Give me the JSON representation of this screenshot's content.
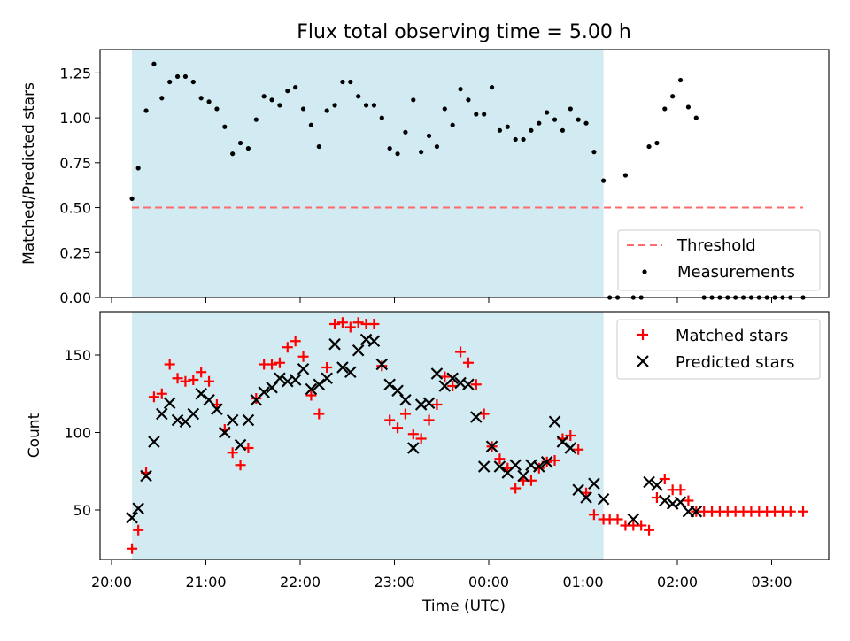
{
  "title": "Flux total observing time = 5.00 h",
  "colors": {
    "span": "#add8e6",
    "threshold": "#ff6b6b",
    "matched": "#ff0000",
    "predicted": "#000000",
    "measurement": "#000000"
  },
  "chart_data": [
    {
      "type": "scatter",
      "ylabel": "Matched/Predicted stars",
      "xlabel": "",
      "ylim": [
        0,
        1.38
      ],
      "x_unit": "hours since 20:00 UTC",
      "shaded_span": [
        "20:13",
        "01:13"
      ],
      "threshold": {
        "name": "Threshold",
        "value": 0.5,
        "x_range": [
          "20:13",
          "03:20"
        ]
      },
      "legend": {
        "position": "lower-right",
        "entries": [
          "Threshold",
          "Measurements"
        ]
      },
      "xticks": [
        "20:00",
        "21:00",
        "22:00",
        "23:00",
        "00:00",
        "01:00",
        "02:00",
        "03:00"
      ],
      "yticks": [
        "0.00",
        "0.25",
        "0.50",
        "0.75",
        "1.00",
        "1.25"
      ],
      "series": [
        {
          "name": "Measurements",
          "x": [
            "20:13",
            "20:17",
            "20:22",
            "20:27",
            "20:32",
            "20:37",
            "20:42",
            "20:47",
            "20:52",
            "20:57",
            "21:02",
            "21:07",
            "21:12",
            "21:17",
            "21:22",
            "21:27",
            "21:32",
            "21:37",
            "21:42",
            "21:47",
            "21:52",
            "21:57",
            "22:02",
            "22:07",
            "22:12",
            "22:17",
            "22:22",
            "22:27",
            "22:32",
            "22:37",
            "22:42",
            "22:47",
            "22:52",
            "22:57",
            "23:02",
            "23:07",
            "23:12",
            "23:17",
            "23:22",
            "23:27",
            "23:32",
            "23:37",
            "23:42",
            "23:47",
            "23:52",
            "23:57",
            "00:02",
            "00:07",
            "00:12",
            "00:17",
            "00:22",
            "00:27",
            "00:32",
            "00:37",
            "00:42",
            "00:47",
            "00:52",
            "00:57",
            "01:02",
            "01:07",
            "01:13",
            "01:17",
            "01:22",
            "01:27",
            "01:32",
            "01:37",
            "01:42",
            "01:47",
            "01:52",
            "01:57",
            "02:02",
            "02:07",
            "02:12",
            "02:17",
            "02:22",
            "02:27",
            "02:32",
            "02:37",
            "02:42",
            "02:47",
            "02:52",
            "02:57",
            "03:02",
            "03:07",
            "03:12",
            "03:20"
          ],
          "y": [
            0.55,
            0.72,
            1.04,
            1.3,
            1.11,
            1.2,
            1.23,
            1.23,
            1.2,
            1.11,
            1.09,
            1.05,
            0.95,
            0.8,
            0.86,
            0.83,
            0.99,
            1.12,
            1.1,
            1.07,
            1.15,
            1.17,
            1.05,
            0.96,
            0.84,
            1.04,
            1.07,
            1.2,
            1.2,
            1.12,
            1.07,
            1.07,
            1.0,
            0.83,
            0.8,
            0.92,
            1.1,
            0.81,
            0.9,
            0.84,
            1.05,
            0.96,
            1.16,
            1.1,
            1.02,
            1.02,
            1.17,
            0.93,
            0.95,
            0.88,
            0.88,
            0.93,
            0.97,
            1.03,
            0.99,
            0.93,
            1.05,
            0.99,
            0.97,
            0.81,
            0.65,
            0.0,
            0.0,
            0.68,
            0.0,
            0.0,
            0.84,
            0.86,
            1.05,
            1.12,
            1.21,
            1.06,
            1.0,
            0.0,
            0.0,
            0.0,
            0.0,
            0.0,
            0.0,
            0.0,
            0.0,
            0.0,
            0.0,
            0.0,
            0.0,
            0.0
          ]
        }
      ]
    },
    {
      "type": "scatter",
      "ylabel": "Count",
      "xlabel": "Time (UTC)",
      "ylim": [
        18,
        178
      ],
      "x_unit": "hours since 20:00 UTC",
      "shaded_span": [
        "20:13",
        "01:13"
      ],
      "legend": {
        "position": "top-right",
        "entries": [
          "Matched stars",
          "Predicted stars"
        ]
      },
      "xticks": [
        "20:00",
        "21:00",
        "22:00",
        "23:00",
        "00:00",
        "01:00",
        "02:00",
        "03:00"
      ],
      "yticks": [
        "50",
        "100",
        "150"
      ],
      "series": [
        {
          "name": "Matched stars",
          "x": [
            "20:13",
            "20:17",
            "20:22",
            "20:27",
            "20:32",
            "20:37",
            "20:42",
            "20:47",
            "20:52",
            "20:57",
            "21:02",
            "21:07",
            "21:12",
            "21:17",
            "21:22",
            "21:27",
            "21:32",
            "21:37",
            "21:42",
            "21:47",
            "21:52",
            "21:57",
            "22:02",
            "22:07",
            "22:12",
            "22:17",
            "22:22",
            "22:27",
            "22:32",
            "22:37",
            "22:42",
            "22:47",
            "22:52",
            "22:57",
            "23:02",
            "23:07",
            "23:12",
            "23:17",
            "23:22",
            "23:27",
            "23:32",
            "23:37",
            "23:42",
            "23:47",
            "23:52",
            "23:57",
            "00:02",
            "00:07",
            "00:12",
            "00:17",
            "00:22",
            "00:27",
            "00:32",
            "00:37",
            "00:42",
            "00:47",
            "00:52",
            "00:57",
            "01:02",
            "01:07",
            "01:13",
            "01:17",
            "01:22",
            "01:27",
            "01:32",
            "01:37",
            "01:42",
            "01:47",
            "01:52",
            "01:57",
            "02:02",
            "02:07",
            "02:12",
            "02:17",
            "02:22",
            "02:27",
            "02:32",
            "02:37",
            "02:42",
            "02:47",
            "02:52",
            "02:57",
            "03:02",
            "03:07",
            "03:12",
            "03:20"
          ],
          "y": [
            25,
            37,
            74,
            123,
            125,
            144,
            135,
            133,
            134,
            139,
            133,
            118,
            102,
            87,
            79,
            90,
            122,
            144,
            144,
            145,
            155,
            159,
            149,
            124,
            112,
            142,
            170,
            171,
            168,
            171,
            170,
            170,
            143,
            108,
            103,
            112,
            99,
            96,
            108,
            118,
            136,
            130,
            152,
            145,
            131,
            112,
            91,
            83,
            77,
            64,
            69,
            69,
            77,
            81,
            82,
            96,
            98,
            89,
            61,
            47,
            44,
            44,
            44,
            40,
            40,
            40,
            37,
            58,
            70,
            63,
            63,
            56,
            49,
            49,
            49,
            49,
            49,
            49,
            49,
            49,
            49,
            49,
            49,
            49,
            49,
            49
          ]
        },
        {
          "name": "Predicted stars",
          "x": [
            "20:13",
            "20:17",
            "20:22",
            "20:27",
            "20:32",
            "20:37",
            "20:42",
            "20:47",
            "20:52",
            "20:57",
            "21:02",
            "21:07",
            "21:12",
            "21:17",
            "21:22",
            "21:27",
            "21:32",
            "21:37",
            "21:42",
            "21:47",
            "21:52",
            "21:57",
            "22:02",
            "22:07",
            "22:12",
            "22:17",
            "22:22",
            "22:27",
            "22:32",
            "22:37",
            "22:42",
            "22:47",
            "22:52",
            "22:57",
            "23:02",
            "23:07",
            "23:12",
            "23:17",
            "23:22",
            "23:27",
            "23:32",
            "23:37",
            "23:42",
            "23:47",
            "23:52",
            "23:57",
            "00:02",
            "00:07",
            "00:12",
            "00:17",
            "00:22",
            "00:27",
            "00:32",
            "00:37",
            "00:42",
            "00:47",
            "00:52",
            "00:57",
            "01:02",
            "01:07",
            "01:13",
            "01:32",
            "01:42",
            "01:47",
            "01:52",
            "01:57",
            "02:02",
            "02:07",
            "02:12"
          ],
          "y": [
            45,
            51,
            72,
            94,
            112,
            119,
            108,
            107,
            112,
            125,
            121,
            115,
            100,
            108,
            92,
            108,
            121,
            126,
            129,
            135,
            133,
            134,
            141,
            128,
            131,
            135,
            157,
            142,
            139,
            153,
            160,
            159,
            144,
            131,
            127,
            121,
            90,
            118,
            119,
            138,
            130,
            135,
            132,
            131,
            110,
            78,
            91,
            78,
            74,
            79,
            72,
            79,
            78,
            81,
            107,
            94,
            90,
            63,
            58,
            67,
            57,
            44,
            68,
            66,
            56,
            54,
            55,
            49,
            49
          ]
        }
      ]
    }
  ]
}
